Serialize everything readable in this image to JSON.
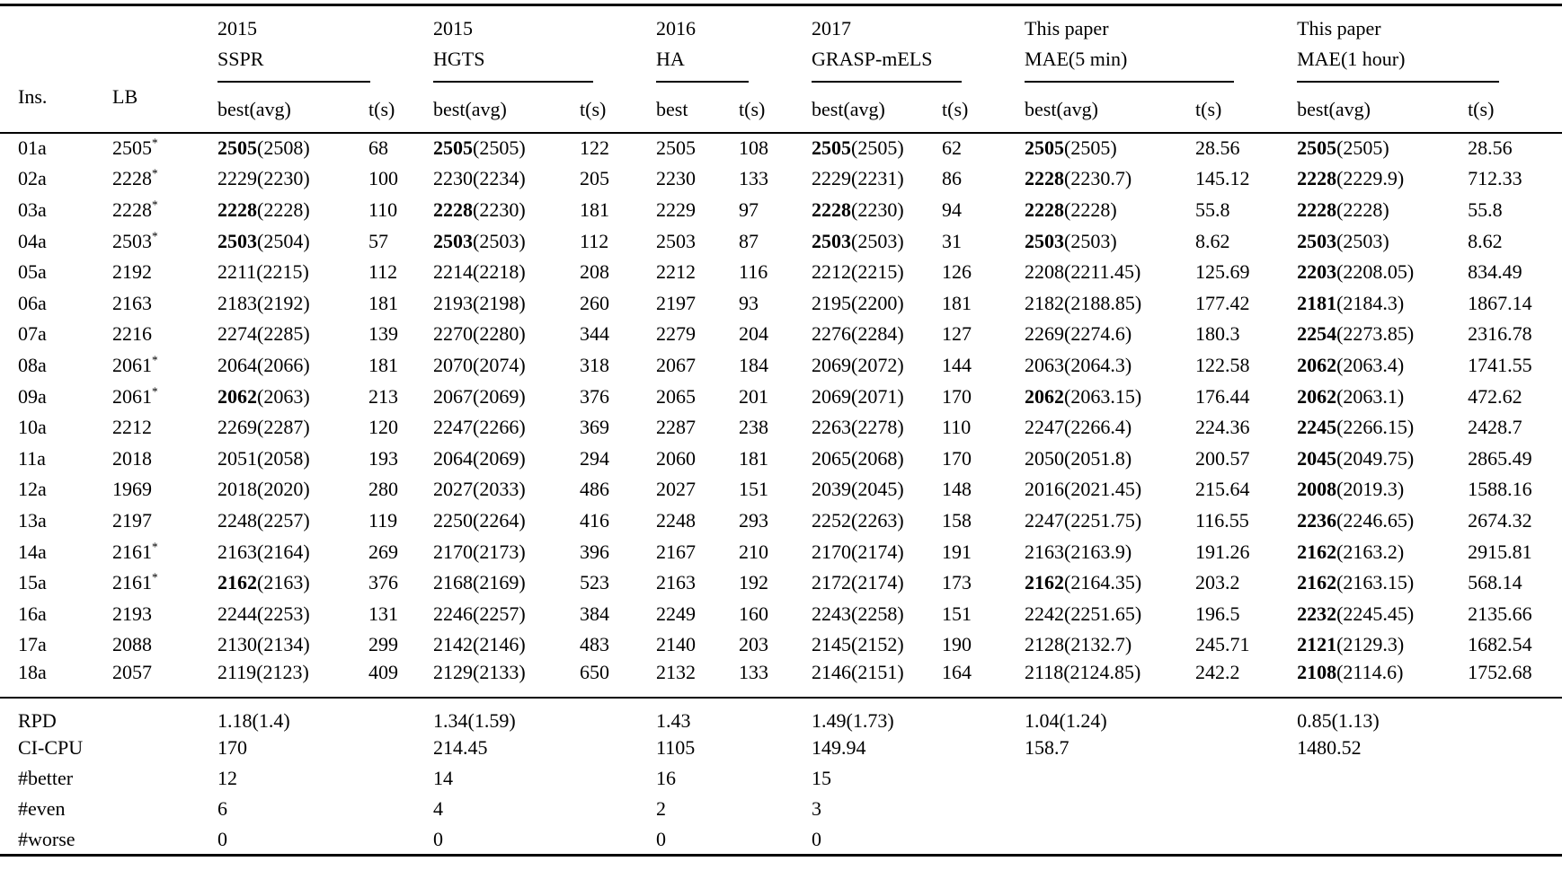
{
  "colors": {
    "background": "#ffffff",
    "text": "#000000",
    "rule": "#000000"
  },
  "table": {
    "col_headers": {
      "ins": "Ins.",
      "lb": "LB",
      "groups": [
        {
          "id": "sspr",
          "line1": "2015",
          "line2": "SSPR",
          "sub": [
            "best(avg)",
            "t(s)"
          ]
        },
        {
          "id": "hgts",
          "line1": "2015",
          "line2": "HGTS",
          "sub": [
            "best(avg)",
            "t(s)"
          ]
        },
        {
          "id": "ha",
          "line1": "2016",
          "line2": "HA",
          "sub": [
            "best",
            "t(s)"
          ]
        },
        {
          "id": "grasp",
          "line1": "2017",
          "line2": "GRASP-mELS",
          "sub": [
            "best(avg)",
            "t(s)"
          ]
        },
        {
          "id": "mae5",
          "line1": "This paper",
          "line2": "MAE(5 min)",
          "sub": [
            "best(avg)",
            "t(s)"
          ]
        },
        {
          "id": "mae1h",
          "line1": "This paper",
          "line2": "MAE(1 hour)",
          "sub": [
            "best(avg)",
            "t(s)"
          ]
        }
      ]
    },
    "rows": [
      {
        "ins": "01a",
        "lb": "2505",
        "lb_star": true,
        "cells": [
          {
            "best": "2505",
            "avg": "2508",
            "bold": true,
            "t": "68"
          },
          {
            "best": "2505",
            "avg": "2505",
            "bold": true,
            "t": "122"
          },
          {
            "best": "2505",
            "t": "108"
          },
          {
            "best": "2505",
            "avg": "2505",
            "bold": true,
            "t": "62"
          },
          {
            "best": "2505",
            "avg": "2505",
            "bold": true,
            "t": "28.56"
          },
          {
            "best": "2505",
            "avg": "2505",
            "bold": true,
            "t": "28.56"
          }
        ]
      },
      {
        "ins": "02a",
        "lb": "2228",
        "lb_star": true,
        "cells": [
          {
            "best": "2229",
            "avg": "2230",
            "bold": false,
            "t": "100"
          },
          {
            "best": "2230",
            "avg": "2234",
            "bold": false,
            "t": "205"
          },
          {
            "best": "2230",
            "t": "133"
          },
          {
            "best": "2229",
            "avg": "2231",
            "bold": false,
            "t": "86"
          },
          {
            "best": "2228",
            "avg": "2230.7",
            "bold": true,
            "t": "145.12"
          },
          {
            "best": "2228",
            "avg": "2229.9",
            "bold": true,
            "t": "712.33"
          }
        ]
      },
      {
        "ins": "03a",
        "lb": "2228",
        "lb_star": true,
        "cells": [
          {
            "best": "2228",
            "avg": "2228",
            "bold": true,
            "t": "110"
          },
          {
            "best": "2228",
            "avg": "2230",
            "bold": true,
            "t": "181"
          },
          {
            "best": "2229",
            "t": "97"
          },
          {
            "best": "2228",
            "avg": "2230",
            "bold": true,
            "t": "94"
          },
          {
            "best": "2228",
            "avg": "2228",
            "bold": true,
            "t": "55.8"
          },
          {
            "best": "2228",
            "avg": "2228",
            "bold": true,
            "t": "55.8"
          }
        ]
      },
      {
        "ins": "04a",
        "lb": "2503",
        "lb_star": true,
        "cells": [
          {
            "best": "2503",
            "avg": "2504",
            "bold": true,
            "t": "57"
          },
          {
            "best": "2503",
            "avg": "2503",
            "bold": true,
            "t": "112"
          },
          {
            "best": "2503",
            "t": "87"
          },
          {
            "best": "2503",
            "avg": "2503",
            "bold": true,
            "t": "31"
          },
          {
            "best": "2503",
            "avg": "2503",
            "bold": true,
            "t": "8.62"
          },
          {
            "best": "2503",
            "avg": "2503",
            "bold": true,
            "t": "8.62"
          }
        ]
      },
      {
        "ins": "05a",
        "lb": "2192",
        "lb_star": false,
        "cells": [
          {
            "best": "2211",
            "avg": "2215",
            "bold": false,
            "t": "112"
          },
          {
            "best": "2214",
            "avg": "2218",
            "bold": false,
            "t": "208"
          },
          {
            "best": "2212",
            "t": "116"
          },
          {
            "best": "2212",
            "avg": "2215",
            "bold": false,
            "t": "126"
          },
          {
            "best": "2208",
            "avg": "2211.45",
            "bold": false,
            "t": "125.69"
          },
          {
            "best": "2203",
            "avg": "2208.05",
            "bold": true,
            "t": "834.49"
          }
        ]
      },
      {
        "ins": "06a",
        "lb": "2163",
        "lb_star": false,
        "cells": [
          {
            "best": "2183",
            "avg": "2192",
            "bold": false,
            "t": "181"
          },
          {
            "best": "2193",
            "avg": "2198",
            "bold": false,
            "t": "260"
          },
          {
            "best": "2197",
            "t": "93"
          },
          {
            "best": "2195",
            "avg": "2200",
            "bold": false,
            "t": "181"
          },
          {
            "best": "2182",
            "avg": "2188.85",
            "bold": false,
            "t": "177.42"
          },
          {
            "best": "2181",
            "avg": "2184.3",
            "bold": true,
            "t": "1867.14"
          }
        ]
      },
      {
        "ins": "07a",
        "lb": "2216",
        "lb_star": false,
        "cells": [
          {
            "best": "2274",
            "avg": "2285",
            "bold": false,
            "t": "139"
          },
          {
            "best": "2270",
            "avg": "2280",
            "bold": false,
            "t": "344"
          },
          {
            "best": "2279",
            "t": "204"
          },
          {
            "best": "2276",
            "avg": "2284",
            "bold": false,
            "t": "127"
          },
          {
            "best": "2269",
            "avg": "2274.6",
            "bold": false,
            "t": "180.3"
          },
          {
            "best": "2254",
            "avg": "2273.85",
            "bold": true,
            "t": "2316.78"
          }
        ]
      },
      {
        "ins": "08a",
        "lb": "2061",
        "lb_star": true,
        "cells": [
          {
            "best": "2064",
            "avg": "2066",
            "bold": false,
            "t": "181"
          },
          {
            "best": "2070",
            "avg": "2074",
            "bold": false,
            "t": "318"
          },
          {
            "best": "2067",
            "t": "184"
          },
          {
            "best": "2069",
            "avg": "2072",
            "bold": false,
            "t": "144"
          },
          {
            "best": "2063",
            "avg": "2064.3",
            "bold": false,
            "t": "122.58"
          },
          {
            "best": "2062",
            "avg": "2063.4",
            "bold": true,
            "t": "1741.55"
          }
        ]
      },
      {
        "ins": "09a",
        "lb": "2061",
        "lb_star": true,
        "cells": [
          {
            "best": "2062",
            "avg": "2063",
            "bold": true,
            "t": "213"
          },
          {
            "best": "2067",
            "avg": "2069",
            "bold": false,
            "t": "376"
          },
          {
            "best": "2065",
            "t": "201"
          },
          {
            "best": "2069",
            "avg": "2071",
            "bold": false,
            "t": "170"
          },
          {
            "best": "2062",
            "avg": "2063.15",
            "bold": true,
            "t": "176.44"
          },
          {
            "best": "2062",
            "avg": "2063.1",
            "bold": true,
            "t": "472.62"
          }
        ]
      },
      {
        "ins": "10a",
        "lb": "2212",
        "lb_star": false,
        "cells": [
          {
            "best": "2269",
            "avg": "2287",
            "bold": false,
            "t": "120"
          },
          {
            "best": "2247",
            "avg": "2266",
            "bold": false,
            "t": "369"
          },
          {
            "best": "2287",
            "t": "238"
          },
          {
            "best": "2263",
            "avg": "2278",
            "bold": false,
            "t": "110"
          },
          {
            "best": "2247",
            "avg": "2266.4",
            "bold": false,
            "t": "224.36"
          },
          {
            "best": "2245",
            "avg": "2266.15",
            "bold": true,
            "t": "2428.7"
          }
        ]
      },
      {
        "ins": "11a",
        "lb": "2018",
        "lb_star": false,
        "cells": [
          {
            "best": "2051",
            "avg": "2058",
            "bold": false,
            "t": "193"
          },
          {
            "best": "2064",
            "avg": "2069",
            "bold": false,
            "t": "294"
          },
          {
            "best": "2060",
            "t": "181"
          },
          {
            "best": "2065",
            "avg": "2068",
            "bold": false,
            "t": "170"
          },
          {
            "best": "2050",
            "avg": "2051.8",
            "bold": false,
            "t": "200.57"
          },
          {
            "best": "2045",
            "avg": "2049.75",
            "bold": true,
            "t": "2865.49"
          }
        ]
      },
      {
        "ins": "12a",
        "lb": "1969",
        "lb_star": false,
        "cells": [
          {
            "best": "2018",
            "avg": "2020",
            "bold": false,
            "t": "280"
          },
          {
            "best": "2027",
            "avg": "2033",
            "bold": false,
            "t": "486"
          },
          {
            "best": "2027",
            "t": "151"
          },
          {
            "best": "2039",
            "avg": "2045",
            "bold": false,
            "t": "148"
          },
          {
            "best": "2016",
            "avg": "2021.45",
            "bold": false,
            "t": "215.64"
          },
          {
            "best": "2008",
            "avg": "2019.3",
            "bold": true,
            "t": "1588.16"
          }
        ]
      },
      {
        "ins": "13a",
        "lb": "2197",
        "lb_star": false,
        "cells": [
          {
            "best": "2248",
            "avg": "2257",
            "bold": false,
            "t": "119"
          },
          {
            "best": "2250",
            "avg": "2264",
            "bold": false,
            "t": "416"
          },
          {
            "best": "2248",
            "t": "293"
          },
          {
            "best": "2252",
            "avg": "2263",
            "bold": false,
            "t": "158"
          },
          {
            "best": "2247",
            "avg": "2251.75",
            "bold": false,
            "t": "116.55"
          },
          {
            "best": "2236",
            "avg": "2246.65",
            "bold": true,
            "t": "2674.32"
          }
        ]
      },
      {
        "ins": "14a",
        "lb": "2161",
        "lb_star": true,
        "cells": [
          {
            "best": "2163",
            "avg": "2164",
            "bold": false,
            "t": "269"
          },
          {
            "best": "2170",
            "avg": "2173",
            "bold": false,
            "t": "396"
          },
          {
            "best": "2167",
            "t": "210"
          },
          {
            "best": "2170",
            "avg": "2174",
            "bold": false,
            "t": "191"
          },
          {
            "best": "2163",
            "avg": "2163.9",
            "bold": false,
            "t": "191.26"
          },
          {
            "best": "2162",
            "avg": "2163.2",
            "bold": true,
            "t": "2915.81"
          }
        ]
      },
      {
        "ins": "15a",
        "lb": "2161",
        "lb_star": true,
        "cells": [
          {
            "best": "2162",
            "avg": "2163",
            "bold": true,
            "t": "376"
          },
          {
            "best": "2168",
            "avg": "2169",
            "bold": false,
            "t": "523"
          },
          {
            "best": "2163",
            "t": "192"
          },
          {
            "best": "2172",
            "avg": "2174",
            "bold": false,
            "t": "173"
          },
          {
            "best": "2162",
            "avg": "2164.35",
            "bold": true,
            "t": "203.2"
          },
          {
            "best": "2162",
            "avg": "2163.15",
            "bold": true,
            "t": "568.14"
          }
        ]
      },
      {
        "ins": "16a",
        "lb": "2193",
        "lb_star": false,
        "cells": [
          {
            "best": "2244",
            "avg": "2253",
            "bold": false,
            "t": "131"
          },
          {
            "best": "2246",
            "avg": "2257",
            "bold": false,
            "t": "384"
          },
          {
            "best": "2249",
            "t": "160"
          },
          {
            "best": "2243",
            "avg": "2258",
            "bold": false,
            "t": "151"
          },
          {
            "best": "2242",
            "avg": "2251.65",
            "bold": false,
            "t": "196.5"
          },
          {
            "best": "2232",
            "avg": "2245.45",
            "bold": true,
            "t": "2135.66"
          }
        ]
      },
      {
        "ins": "17a",
        "lb": "2088",
        "lb_star": false,
        "cells": [
          {
            "best": "2130",
            "avg": "2134",
            "bold": false,
            "t": "299"
          },
          {
            "best": "2142",
            "avg": "2146",
            "bold": false,
            "t": "483"
          },
          {
            "best": "2140",
            "t": "203"
          },
          {
            "best": "2145",
            "avg": "2152",
            "bold": false,
            "t": "190"
          },
          {
            "best": "2128",
            "avg": "2132.7",
            "bold": false,
            "t": "245.71"
          },
          {
            "best": "2121",
            "avg": "2129.3",
            "bold": true,
            "t": "1682.54"
          }
        ]
      },
      {
        "ins": "18a",
        "lb": "2057",
        "lb_star": false,
        "cells": [
          {
            "best": "2119",
            "avg": "2123",
            "bold": false,
            "t": "409"
          },
          {
            "best": "2129",
            "avg": "2133",
            "bold": false,
            "t": "650"
          },
          {
            "best": "2132",
            "t": "133"
          },
          {
            "best": "2146",
            "avg": "2151",
            "bold": false,
            "t": "164"
          },
          {
            "best": "2118",
            "avg": "2124.85",
            "bold": false,
            "t": "242.2"
          },
          {
            "best": "2108",
            "avg": "2114.6",
            "bold": true,
            "t": "1752.68"
          }
        ]
      }
    ],
    "summary": [
      {
        "label": "RPD",
        "values": [
          "1.18(1.4)",
          "1.34(1.59)",
          "1.43",
          "1.49(1.73)",
          "1.04(1.24)",
          "0.85(1.13)"
        ]
      },
      {
        "label": "CI-CPU",
        "values": [
          "170",
          "214.45",
          "1105",
          "149.94",
          "158.7",
          "1480.52"
        ]
      },
      {
        "label": "#better",
        "values": [
          "12",
          "14",
          "16",
          "15",
          "",
          ""
        ]
      },
      {
        "label": "#even",
        "values": [
          "6",
          "4",
          "2",
          "3",
          "",
          ""
        ]
      },
      {
        "label": "#worse",
        "values": [
          "0",
          "0",
          "0",
          "0",
          "",
          ""
        ]
      }
    ]
  }
}
